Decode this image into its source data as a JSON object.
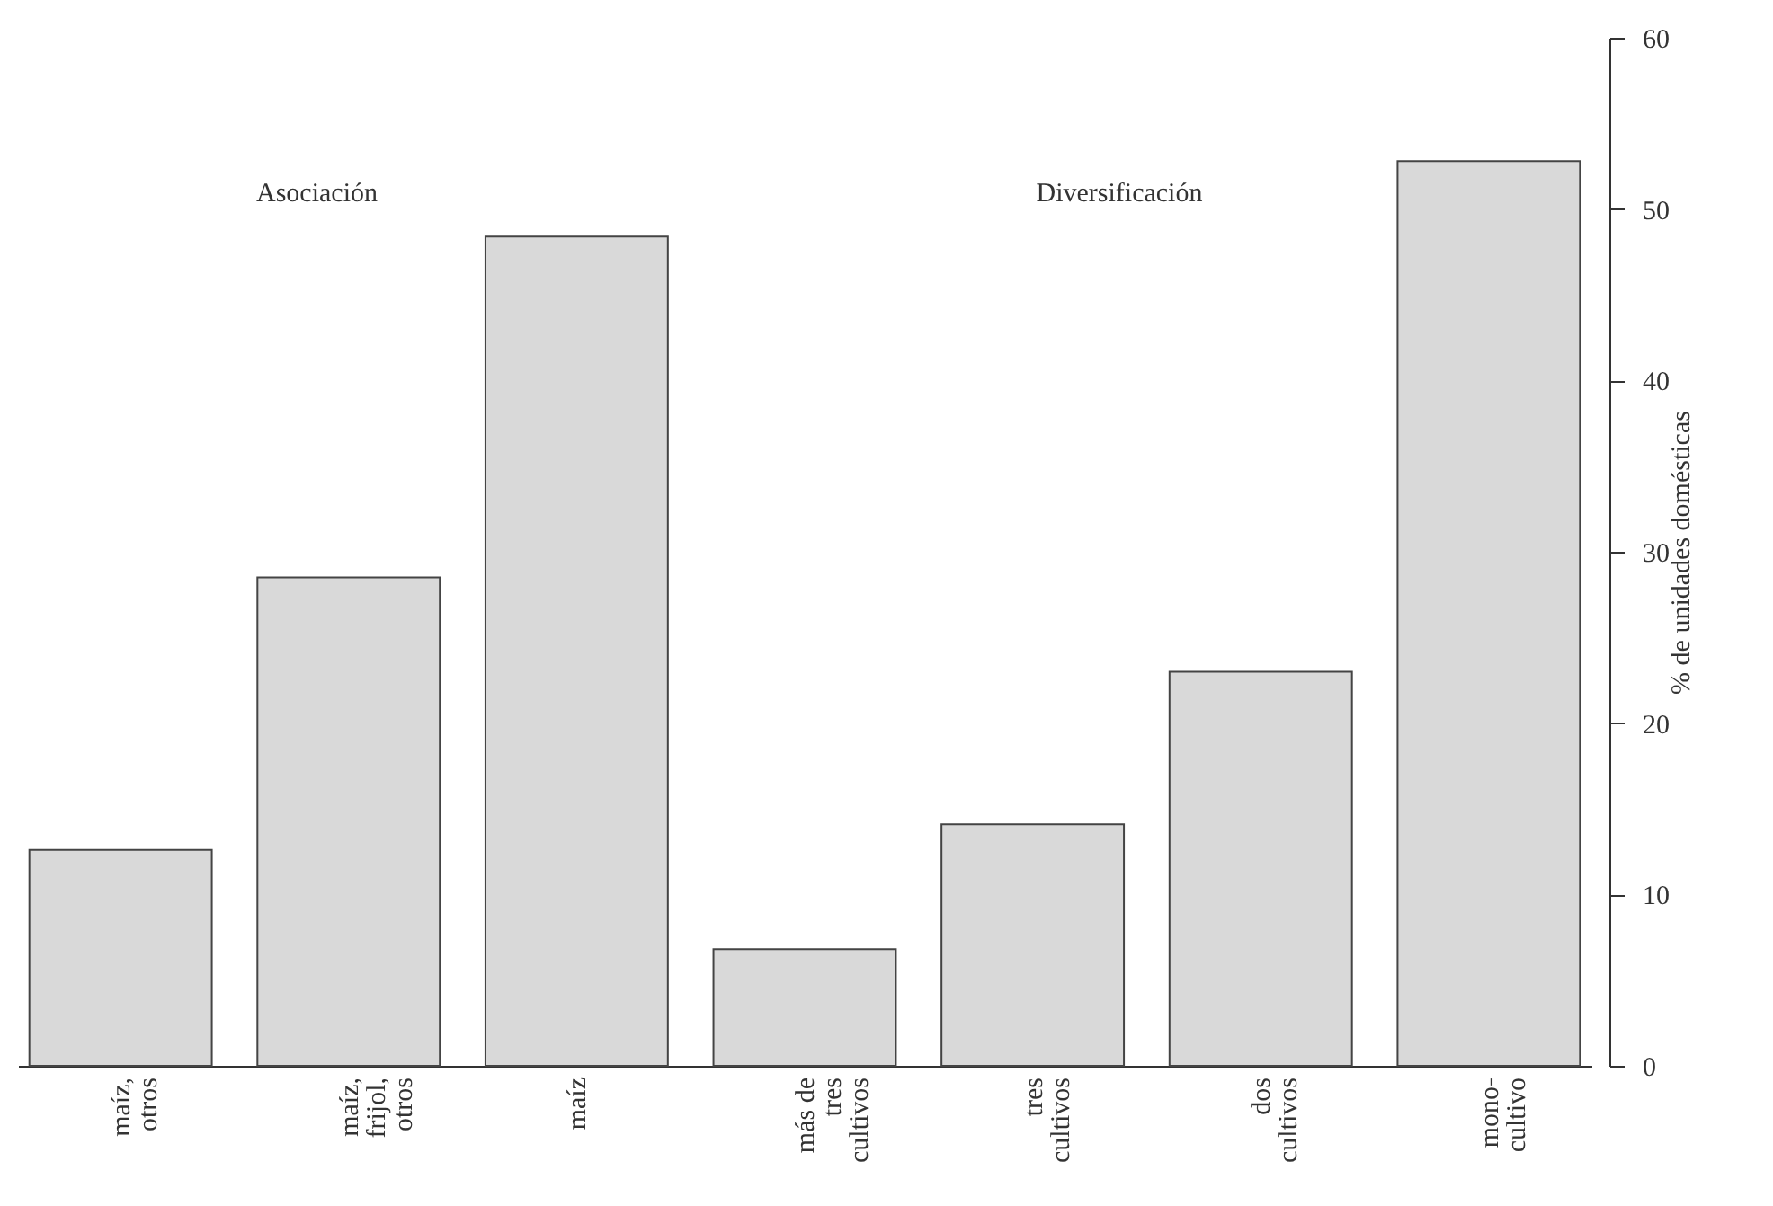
{
  "chart_data": {
    "type": "bar",
    "categories": [
      "maíz,\notros",
      "maíz,\nfrijol,\notros",
      "maíz",
      "más de\ntres\ncultivos",
      "tres\ncultivos",
      "dos\ncultivos",
      "mono-\ncultivo"
    ],
    "values": [
      12.6,
      28.5,
      48.4,
      6.8,
      14.1,
      23.0,
      52.8
    ],
    "color": "#d9d9d9",
    "ylabel": "% de unidades domésticas",
    "ylim": [
      0,
      60
    ],
    "yticks": [
      0,
      10,
      20,
      30,
      40,
      50,
      60
    ],
    "grid": false,
    "annotations": [
      "Asociación",
      "Diversificación"
    ]
  }
}
